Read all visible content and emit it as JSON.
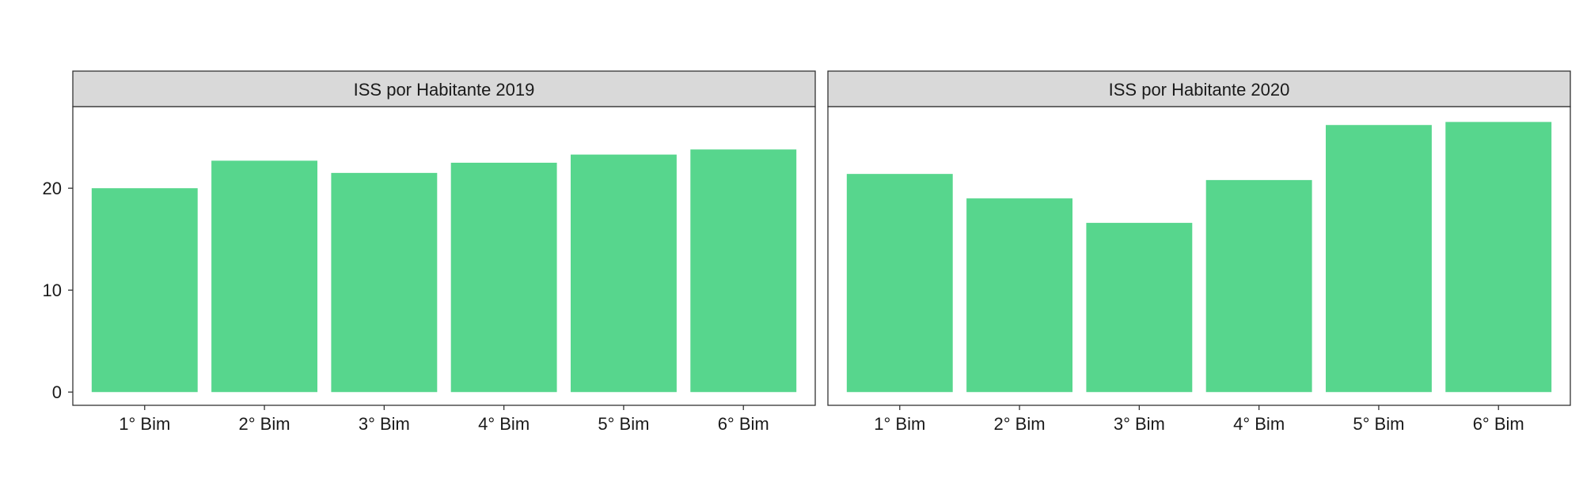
{
  "chart_data": {
    "type": "bar",
    "bar_color": "#57D68D",
    "strip_color": "#D9D9D9",
    "y_ticks": [
      0,
      10,
      20
    ],
    "ylim": [
      -1.3,
      28
    ],
    "categories": [
      "1° Bim",
      "2° Bim",
      "3° Bim",
      "4° Bim",
      "5° Bim",
      "6° Bim"
    ],
    "panels": [
      {
        "title": "ISS por Habitante 2019",
        "values": [
          20.0,
          22.7,
          21.5,
          22.5,
          23.3,
          23.8
        ]
      },
      {
        "title": "ISS por Habitante 2020",
        "values": [
          21.4,
          19.0,
          16.6,
          20.8,
          26.2,
          26.5
        ]
      }
    ]
  }
}
